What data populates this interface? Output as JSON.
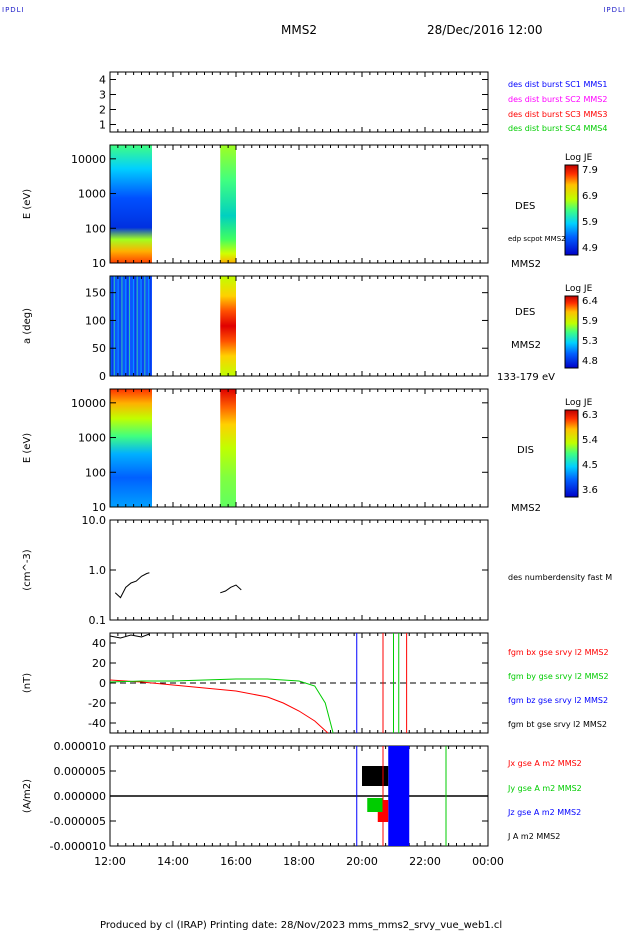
{
  "header": {
    "corner_label": "IPDLI",
    "spacecraft": "MMS2",
    "datetime": "28/Dec/2016 12:00"
  },
  "footer": {
    "text": "Produced by cl (IRAP)   Printing date: 28/Nov/2023   mms_mms2_srvy_vue_web1.cl"
  },
  "x_axis": {
    "ticks": [
      "12:00",
      "14:00",
      "16:00",
      "18:00",
      "20:00",
      "22:00",
      "00:00"
    ]
  },
  "chart_data": [
    {
      "id": "sc-presence",
      "type": "scatter",
      "yticks": [
        "4",
        "3",
        "2",
        "1"
      ],
      "ylim": [
        0.5,
        4.5
      ],
      "legend": [
        {
          "label": "des dist burst SC1 MMS1",
          "color": "#0000ff"
        },
        {
          "label": "des dist burst SC2 MMS2",
          "color": "#ff00ff"
        },
        {
          "label": "des dist burst SC3 MMS3",
          "color": "#ff0000"
        },
        {
          "label": "des dist burst SC4 MMS4",
          "color": "#00cc00"
        }
      ]
    },
    {
      "id": "des-energy",
      "type": "heatmap",
      "ylabel": "E (eV)",
      "yscale": "log",
      "ylim": [
        10,
        25000
      ],
      "yticks": [
        "10000",
        "1000",
        "100",
        "10"
      ],
      "label": "DES",
      "sub_label": "edp scpot MMS2",
      "bottom_label": "MMS2",
      "colorbar": {
        "title": "Log JE",
        "ticks": [
          "7.9",
          "6.9",
          "5.9",
          "4.9"
        ]
      },
      "intervals": [
        [
          "12:00",
          "13:20"
        ],
        [
          "15:30",
          "16:00"
        ]
      ]
    },
    {
      "id": "des-pitch",
      "type": "heatmap",
      "ylabel": "a (deg)",
      "ylim": [
        0,
        180
      ],
      "yticks": [
        "150",
        "100",
        "50",
        "0"
      ],
      "label": "DES",
      "sub_label": "MMS2",
      "bottom_label": "133-179 eV",
      "colorbar": {
        "title": "Log JE",
        "ticks": [
          "6.4",
          "5.9",
          "5.3",
          "4.8"
        ]
      },
      "intervals": [
        [
          "12:00",
          "13:20"
        ],
        [
          "15:30",
          "16:00"
        ]
      ]
    },
    {
      "id": "dis-energy",
      "type": "heatmap",
      "ylabel": "E (eV)",
      "yscale": "log",
      "ylim": [
        10,
        25000
      ],
      "yticks": [
        "10000",
        "1000",
        "100",
        "10"
      ],
      "label": "DIS",
      "bottom_label": "MMS2",
      "colorbar": {
        "title": "Log JE",
        "ticks": [
          "6.3",
          "5.4",
          "4.5",
          "3.6"
        ]
      },
      "intervals": [
        [
          "12:00",
          "13:20"
        ],
        [
          "15:30",
          "16:00"
        ]
      ]
    },
    {
      "id": "density",
      "type": "line",
      "ylabel": "(cm^-3)",
      "yscale": "log",
      "ylim": [
        0.1,
        10
      ],
      "yticks": [
        "10.0",
        "1.0",
        "0.1"
      ],
      "legend": [
        {
          "label": "des numberdensity fast M",
          "color": "#000000"
        }
      ],
      "series": [
        {
          "x": [
            "12:10",
            "12:20",
            "12:30",
            "12:40",
            "12:50",
            "13:00",
            "13:10",
            "13:15"
          ],
          "values": [
            0.35,
            0.28,
            0.45,
            0.55,
            0.6,
            0.75,
            0.85,
            0.88
          ]
        },
        {
          "x": [
            "15:30",
            "15:40",
            "15:50",
            "16:00",
            "16:10"
          ],
          "values": [
            0.35,
            0.38,
            0.45,
            0.5,
            0.4
          ]
        }
      ]
    },
    {
      "id": "fgm",
      "type": "line",
      "ylabel": "(nT)",
      "ylim": [
        -50,
        50
      ],
      "yticks": [
        "40",
        "20",
        "0",
        "-20",
        "-40"
      ],
      "legend": [
        {
          "label": "fgm bx gse srvy l2 MMS2",
          "color": "#ff0000"
        },
        {
          "label": "fgm by gse srvy l2 MMS2",
          "color": "#00cc00"
        },
        {
          "label": "fgm bz gse srvy l2 MMS2",
          "color": "#0000ff"
        },
        {
          "label": "fgm bt gse srvy l2 MMS2",
          "color": "#000000"
        }
      ],
      "series": [
        {
          "name": "fgm bx gse srvy l2 MMS2",
          "x": [
            "12:00",
            "13:00",
            "14:00",
            "15:00",
            "16:00",
            "17:00",
            "17:30",
            "18:00",
            "18:30",
            "18:55"
          ],
          "values": [
            3,
            1,
            -2,
            -5,
            -8,
            -14,
            -20,
            -28,
            -38,
            -50
          ]
        },
        {
          "name": "fgm by gse srvy l2 MMS2",
          "x": [
            "12:00",
            "13:00",
            "14:00",
            "15:00",
            "16:00",
            "17:00",
            "18:00",
            "18:30",
            "18:50",
            "19:05"
          ],
          "values": [
            1,
            2,
            2,
            3,
            4,
            4,
            2,
            -3,
            -20,
            -50
          ]
        },
        {
          "name": "fgm bt gse srvy l2 MMS2",
          "x": [
            "12:00",
            "12:20",
            "12:40",
            "13:00",
            "13:15"
          ],
          "values": [
            47,
            45,
            48,
            46,
            49
          ]
        }
      ]
    },
    {
      "id": "current",
      "type": "line",
      "ylabel": "(A/m2)",
      "ylim": [
        -1e-05,
        1e-05
      ],
      "yticks": [
        "0.000010",
        "0.000005",
        "0.000000",
        "-0.000005",
        "-0.000010"
      ],
      "legend": [
        {
          "label": "Jx gse A m2 MMS2",
          "color": "#ff0000"
        },
        {
          "label": "Jy gse A m2 MMS2",
          "color": "#00cc00"
        },
        {
          "label": "Jz gse A m2 MMS2",
          "color": "#0000ff"
        },
        {
          "label": "J A m2 MMS2",
          "color": "#000000"
        }
      ]
    }
  ]
}
